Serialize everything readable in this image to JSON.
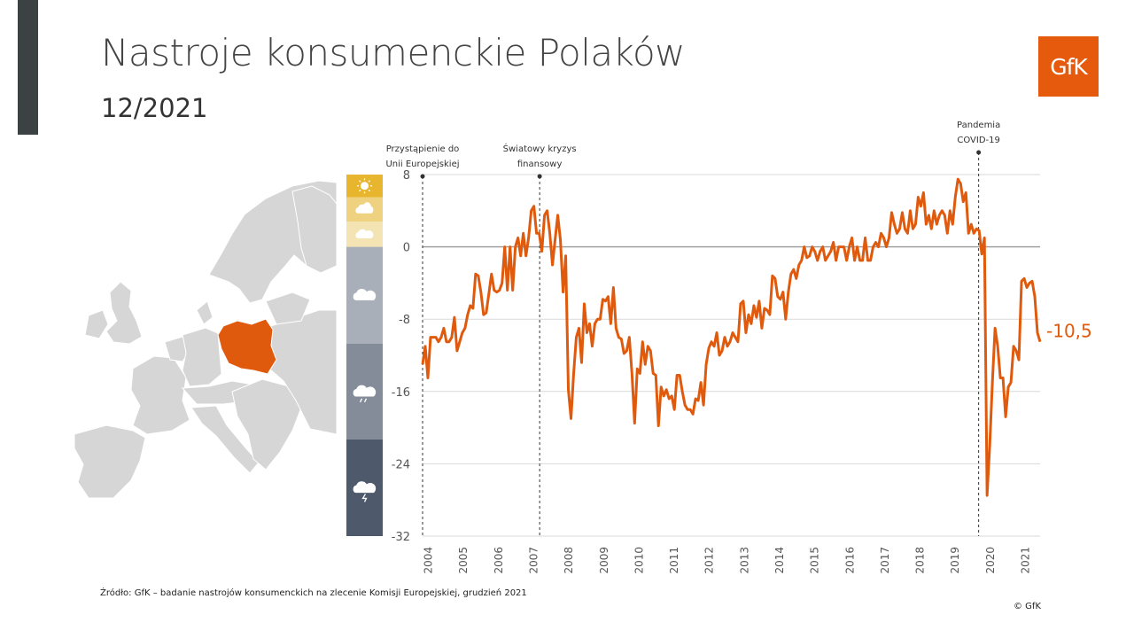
{
  "header": {
    "title": "Nastroje konsumenckie Polaków",
    "subtitle": "12/2021",
    "logo_text": "GfK"
  },
  "footer": {
    "source": "Źródło: GfK – badanie nastrojów konsumenckich na zlecenie Komisji Europejskiej, grudzień 2021",
    "copyright": "© GfK"
  },
  "colors": {
    "line": "#e05a0e",
    "map_highlight": "#e05a0e",
    "map_base": "#d6d6d6",
    "logo": "#e55a0c",
    "band_sun": "#e8b62e",
    "band_sun_cloud": "#efd27f",
    "band_cloud_light": "#f4e4b4",
    "band_cloud": "#a9afb8",
    "band_rain": "#848c99",
    "band_storm": "#4e596c"
  },
  "weather_icons": [
    "sun-icon",
    "sun-cloud-icon",
    "cloud-icon",
    "cloud-icon",
    "rain-cloud-icon",
    "storm-cloud-icon"
  ],
  "chart_data": {
    "type": "line",
    "series": [
      {
        "values": [
          -13,
          -11,
          -14.5,
          -10,
          -10,
          -10,
          -10.5,
          -10,
          -9,
          -10.5,
          -10.5,
          -10,
          -7.8,
          -11.5,
          -10.5,
          -9.5,
          -9,
          -7.5,
          -6.5,
          -6.8,
          -3,
          -3.2,
          -5,
          -7.5,
          -7.3,
          -5.2,
          -3,
          -4.8,
          -5,
          -4.8,
          -4,
          0,
          -4.8,
          0,
          -4.8,
          0,
          1,
          -1,
          1.5,
          -1,
          1,
          4,
          4.5,
          1.5,
          1.5,
          -0.5,
          3.5,
          4,
          1.5,
          -2,
          0.8,
          3.5,
          0.8,
          -5,
          -1,
          -15.8,
          -19,
          -14,
          -10,
          -9,
          -12.8,
          -6.3,
          -9.5,
          -8.5,
          -11,
          -8.5,
          -8,
          -8,
          -5.8,
          -6,
          -5.5,
          -8.5,
          -4.5,
          -9,
          -10,
          -10.2,
          -11.8,
          -11.5,
          -10,
          -14,
          -19.5,
          -13.5,
          -14,
          -10.5,
          -13,
          -11,
          -11.5,
          -14,
          -14.2,
          -19.8,
          -15.5,
          -16.5,
          -15.8,
          -16.8,
          -16.5,
          -18,
          -14.2,
          -14.2,
          -16,
          -17.5,
          -18,
          -18,
          -18.5,
          -16.8,
          -17,
          -15,
          -17.5,
          -13,
          -11.2,
          -10.5,
          -11,
          -9.5,
          -12,
          -11.5,
          -10,
          -11,
          -10.5,
          -9.5,
          -10,
          -10.5,
          -6.3,
          -6,
          -9.5,
          -7.5,
          -8.5,
          -6.5,
          -7.8,
          -6,
          -9,
          -6.8,
          -7,
          -7.5,
          -3.2,
          -3.5,
          -5.5,
          -5.8,
          -5,
          -8,
          -5,
          -3,
          -2.5,
          -3.5,
          -2,
          -1.5,
          0,
          -1.2,
          -1,
          0,
          -0.5,
          -1.5,
          -0.5,
          0,
          -1.5,
          -1,
          -0.5,
          0.5,
          -1.5,
          0,
          0,
          0,
          -1.5,
          0,
          1,
          -1.5,
          0,
          -1.5,
          -1.5,
          1,
          -1.5,
          -1.5,
          0,
          0.5,
          0,
          1.5,
          1,
          0,
          1,
          3.8,
          2.5,
          1.5,
          2,
          3.8,
          2,
          1.5,
          4,
          2,
          2.5,
          5.5,
          4.5,
          6,
          2.5,
          3.5,
          2,
          4,
          2.5,
          3.5,
          4,
          3.5,
          1.5,
          4,
          2.5,
          5.5,
          7.5,
          7,
          5,
          6,
          1.5,
          2.5,
          1.5,
          2,
          1.8,
          -0.8,
          1,
          -27.5,
          -22,
          -15,
          -9,
          -11,
          -14.5,
          -14.5,
          -18.8,
          -15.5,
          -15,
          -11,
          -11.5,
          -12.5,
          -3.8,
          -3.5,
          -4.5,
          -4,
          -3.8,
          -5.5,
          -9.5,
          -10.5
        ]
      }
    ],
    "x_start": "2004-05",
    "x_end": "2021-12",
    "x_ticks": [
      "2004",
      "2005",
      "2006",
      "2007",
      "2008",
      "2009",
      "2010",
      "2011",
      "2012",
      "2013",
      "2014",
      "2015",
      "2016",
      "2017",
      "2018",
      "2019",
      "2020",
      "2021"
    ],
    "y_ticks": [
      "8",
      "0",
      "-8",
      "-16",
      "-24",
      "-32"
    ],
    "ylim": [
      -32,
      8
    ],
    "last_value_label": "-10,5",
    "events": [
      {
        "date": "2004-05",
        "label_lines": [
          "Przystąpienie do",
          "Unii Europejskiej"
        ]
      },
      {
        "date": "2007-09",
        "label_lines": [
          "Światowy kryzys",
          "finansowy"
        ]
      },
      {
        "date": "2020-03",
        "label_lines": [
          "Pandemia",
          "COVID-19"
        ]
      }
    ],
    "grid": true,
    "zero_line": true
  }
}
